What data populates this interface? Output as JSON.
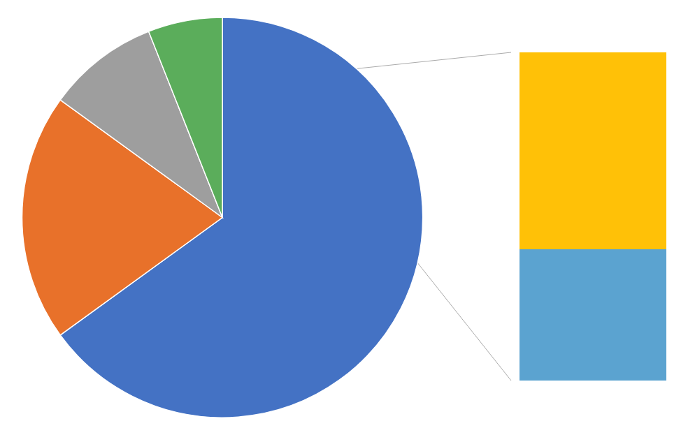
{
  "chart_data": [
    {
      "type": "pie",
      "values": [
        65,
        20,
        9,
        6
      ],
      "colors": [
        "#4472C4",
        "#E8712A",
        "#9E9E9E",
        "#5BAD5B"
      ]
    },
    {
      "type": "bar",
      "stacked": true,
      "categories": [
        null
      ],
      "series": [
        {
          "values": [
            6
          ],
          "color": "#5BA3D0"
        },
        {
          "values": [
            9
          ],
          "color": "#FFC107"
        }
      ],
      "ylim": [
        0,
        15
      ],
      "tick_labels": false
    }
  ]
}
